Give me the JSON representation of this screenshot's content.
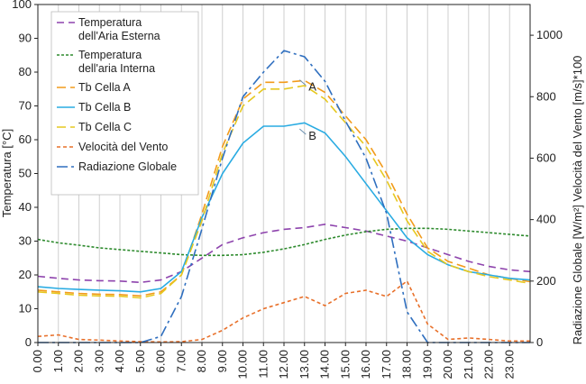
{
  "chart_data": {
    "type": "line",
    "xlabel": "",
    "ylabel": "Temperatura [°C]",
    "ylabel2": "Radiazione Globale  [W/m²] Velocità del Vento [m/s]*100",
    "ylim": [
      0,
      100
    ],
    "ylim2": [
      0,
      1100
    ],
    "grid": "vertical",
    "legend_position": "top-left",
    "x_tick_labels": [
      "0.00",
      "1.00",
      "2.00",
      "3.00",
      "4.00",
      "5.00",
      "6.00",
      "7.00",
      "8.00",
      "9.00",
      "10.00",
      "11.00",
      "12.00",
      "13.00",
      "14.00",
      "15.00",
      "16.00",
      "17.00",
      "18.00",
      "19.00",
      "20.00",
      "21.00",
      "22.00",
      "23.00"
    ],
    "y_ticks": [
      0,
      10,
      20,
      30,
      40,
      50,
      60,
      70,
      80,
      90,
      100
    ],
    "y2_ticks": [
      0,
      200,
      400,
      600,
      800,
      1000
    ],
    "x_hours": [
      0,
      1,
      2,
      3,
      4,
      5,
      6,
      7,
      8,
      9,
      10,
      11,
      12,
      13,
      14,
      15,
      16,
      17,
      18,
      19,
      20,
      21,
      22,
      23,
      24
    ],
    "series": [
      {
        "name": "Temperatura dell'Aria Esterna",
        "axis": "left",
        "color": "#8e44ad",
        "dash": "8,5",
        "values": [
          19.6,
          19.0,
          18.5,
          18.3,
          18.2,
          17.8,
          18.5,
          21.0,
          25.0,
          29.0,
          31.0,
          32.5,
          33.5,
          34.0,
          35.0,
          34.0,
          33.0,
          31.5,
          30.0,
          28.0,
          26.0,
          24.0,
          22.5,
          21.5,
          21.0
        ]
      },
      {
        "name": "Temperatura dell'aria Interna",
        "axis": "left",
        "color": "#2e8b2e",
        "dash": "3,2",
        "values": [
          30.5,
          29.5,
          28.8,
          28.0,
          27.5,
          27.0,
          26.5,
          26.0,
          25.8,
          25.8,
          26.0,
          26.7,
          27.7,
          29.0,
          30.5,
          31.8,
          32.8,
          33.5,
          33.8,
          33.8,
          33.5,
          33.0,
          32.5,
          32.0,
          31.5
        ]
      },
      {
        "name": "Tb Cella A",
        "axis": "left",
        "color": "#f29b1b",
        "dash": "10,5",
        "values": [
          15.5,
          15.0,
          14.5,
          14.3,
          14.2,
          13.8,
          15.0,
          20.0,
          38.0,
          58.0,
          72.0,
          77.0,
          77.0,
          77.5,
          74.0,
          67.0,
          60.0,
          50.0,
          38.0,
          28.0,
          24.0,
          22.0,
          20.0,
          19.0,
          18.0
        ]
      },
      {
        "name": "Tb Cella B",
        "axis": "left",
        "color": "#29abe2",
        "dash": "none",
        "values": [
          16.5,
          16.0,
          15.7,
          15.5,
          15.3,
          15.0,
          16.0,
          21.0,
          37.0,
          50.0,
          59.0,
          64.0,
          64.0,
          65.0,
          62.0,
          55.0,
          47.0,
          39.0,
          31.0,
          26.0,
          23.0,
          21.0,
          20.0,
          19.0,
          18.5
        ]
      },
      {
        "name": "Tb Cella C",
        "axis": "left",
        "color": "#e6c820",
        "dash": "10,5",
        "values": [
          15.0,
          14.5,
          14.0,
          13.8,
          13.7,
          13.2,
          14.5,
          20.0,
          36.0,
          56.0,
          70.0,
          75.0,
          75.0,
          76.0,
          72.0,
          65.0,
          58.0,
          48.0,
          36.0,
          27.0,
          23.0,
          21.0,
          19.5,
          18.5,
          17.5
        ]
      },
      {
        "name": "Velocità del Vento",
        "axis": "right",
        "color": "#e8702a",
        "dash": "4,3",
        "values": [
          20,
          25,
          10,
          8,
          5,
          3,
          2,
          3,
          10,
          40,
          80,
          110,
          130,
          150,
          120,
          160,
          170,
          150,
          200,
          60,
          10,
          15,
          10,
          5,
          5
        ]
      },
      {
        "name": "Radiazione Globale",
        "axis": "right",
        "color": "#2f6fbf",
        "dash": "12,4,3,4",
        "values": [
          0,
          0,
          0,
          0,
          0,
          0,
          20,
          150,
          370,
          600,
          800,
          880,
          950,
          930,
          850,
          720,
          600,
          420,
          100,
          0,
          0,
          0,
          0,
          0,
          0
        ]
      }
    ],
    "annotations": [
      {
        "text": "A",
        "x": 13.2,
        "y": 74.5
      },
      {
        "text": "B",
        "x": 13.2,
        "y": 60.0
      }
    ]
  }
}
